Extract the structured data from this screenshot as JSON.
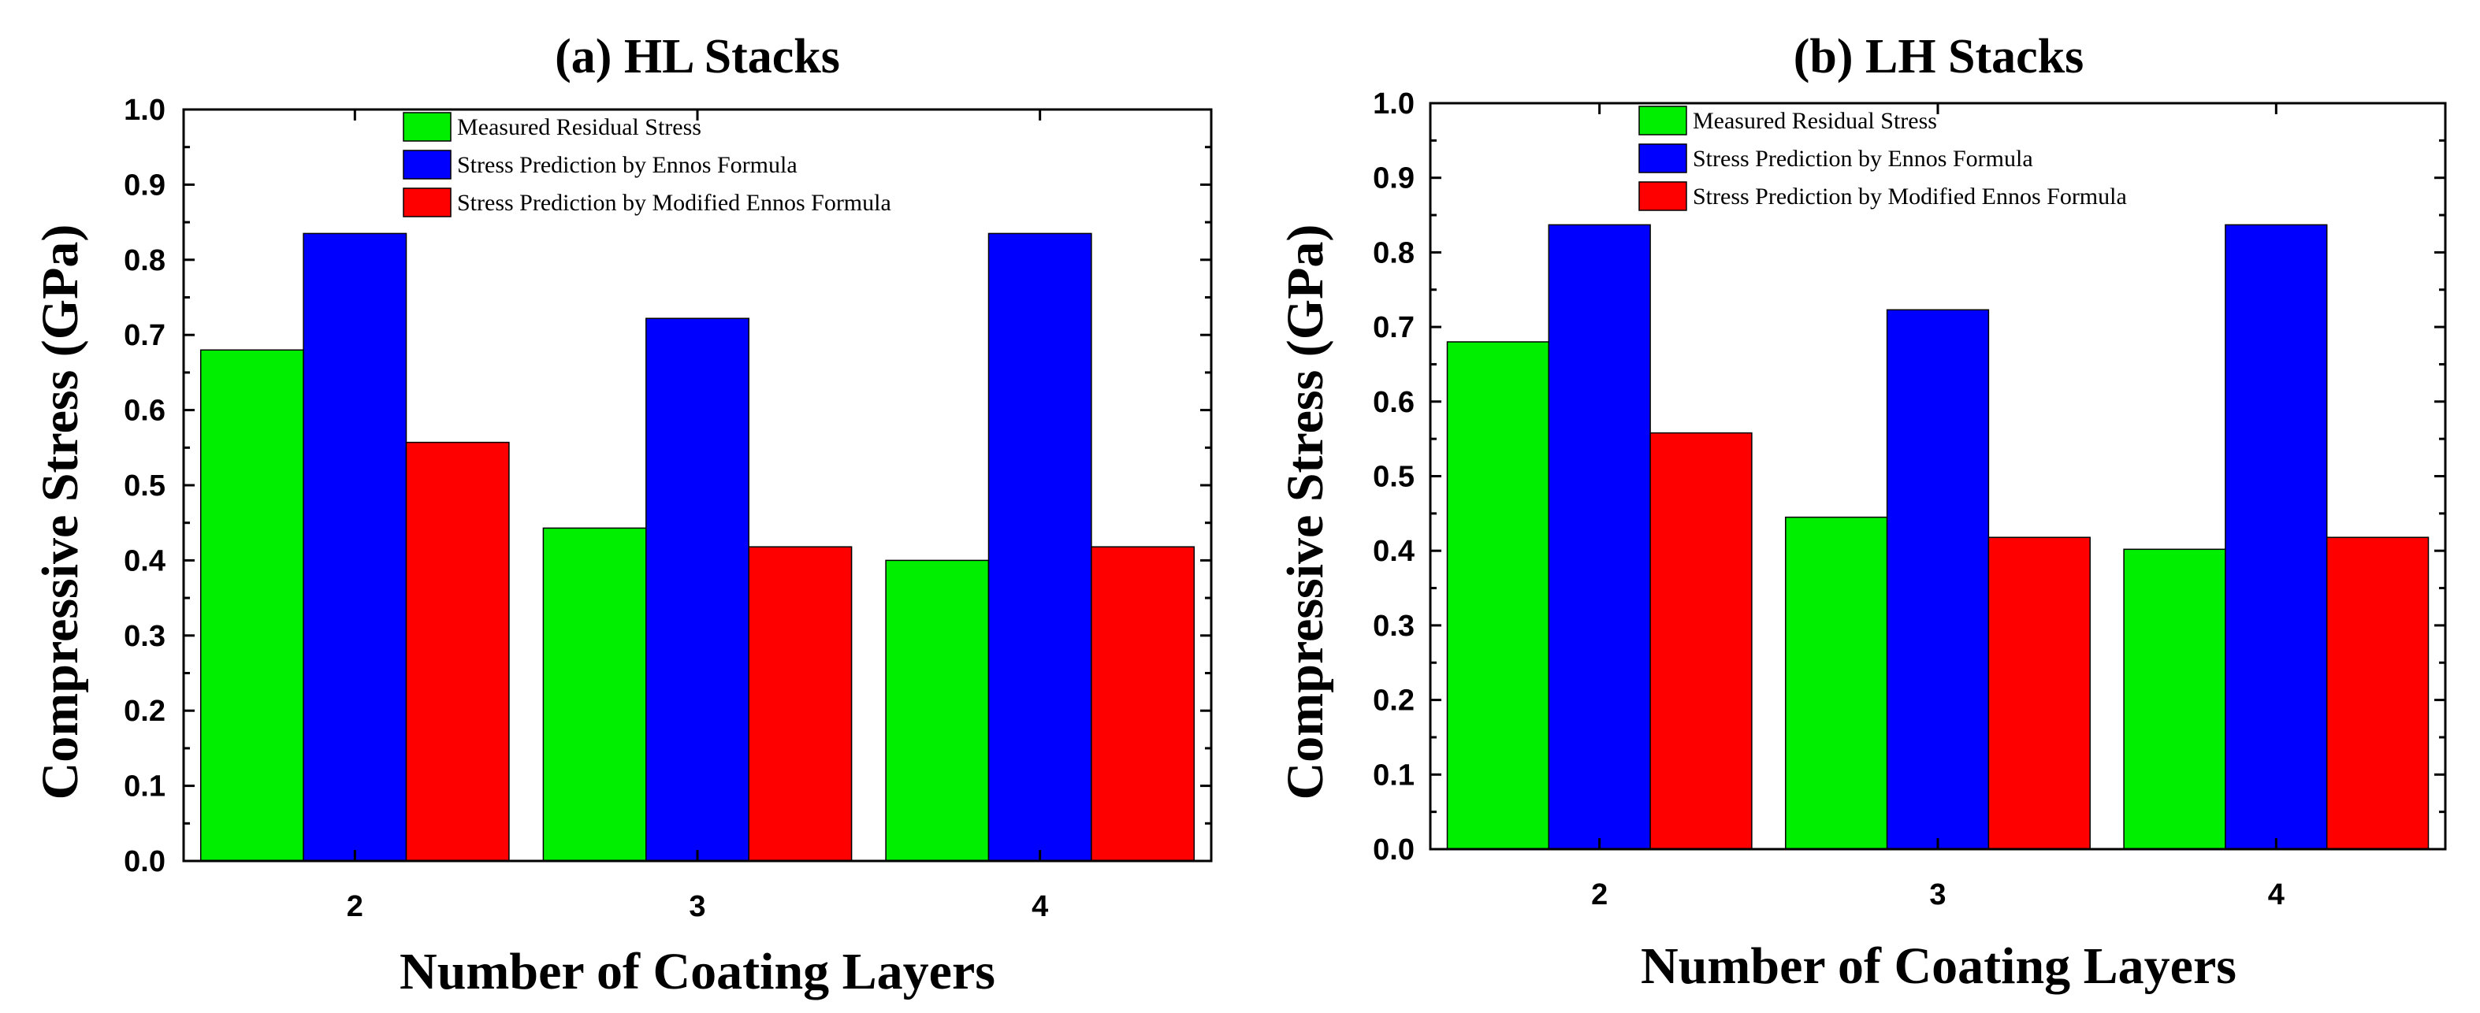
{
  "chart_data": [
    {
      "type": "bar",
      "title": "(a) HL Stacks",
      "xlabel": "Number of Coating Layers",
      "ylabel": "Compressive Stress (GPa)",
      "categories": [
        "2",
        "3",
        "4"
      ],
      "ylim": [
        0.0,
        1.0
      ],
      "yticks": [
        "0.0",
        "0.1",
        "0.2",
        "0.3",
        "0.4",
        "0.5",
        "0.6",
        "0.7",
        "0.8",
        "0.9",
        "1.0"
      ],
      "legend_position": "top",
      "series": [
        {
          "name": "Measured Residual Stress",
          "color": "#00ee00",
          "values": [
            0.68,
            0.443,
            0.4
          ]
        },
        {
          "name": "Stress Prediction by  Ennos Formula",
          "color": "#0000ff",
          "values": [
            0.835,
            0.722,
            0.835
          ]
        },
        {
          "name": "Stress Prediction by Modified Ennos Formula",
          "color": "#ff0000",
          "values": [
            0.557,
            0.418,
            0.418
          ]
        }
      ]
    },
    {
      "type": "bar",
      "title": "(b) LH Stacks",
      "xlabel": "Number of Coating Layers",
      "ylabel": "Compressive Stress (GPa)",
      "categories": [
        "2",
        "3",
        "4"
      ],
      "ylim": [
        0.0,
        1.0
      ],
      "yticks": [
        "0.0",
        "0.1",
        "0.2",
        "0.3",
        "0.4",
        "0.5",
        "0.6",
        "0.7",
        "0.8",
        "0.9",
        "1.0"
      ],
      "legend_position": "top",
      "series": [
        {
          "name": "Measured Residual Stress",
          "color": "#00ee00",
          "values": [
            0.68,
            0.445,
            0.402
          ]
        },
        {
          "name": "Stress Prediction by  Ennos Formula",
          "color": "#0000ff",
          "values": [
            0.837,
            0.723,
            0.837
          ]
        },
        {
          "name": "Stress Prediction by Modified Ennos Formula",
          "color": "#ff0000",
          "values": [
            0.558,
            0.418,
            0.418
          ]
        }
      ]
    }
  ]
}
